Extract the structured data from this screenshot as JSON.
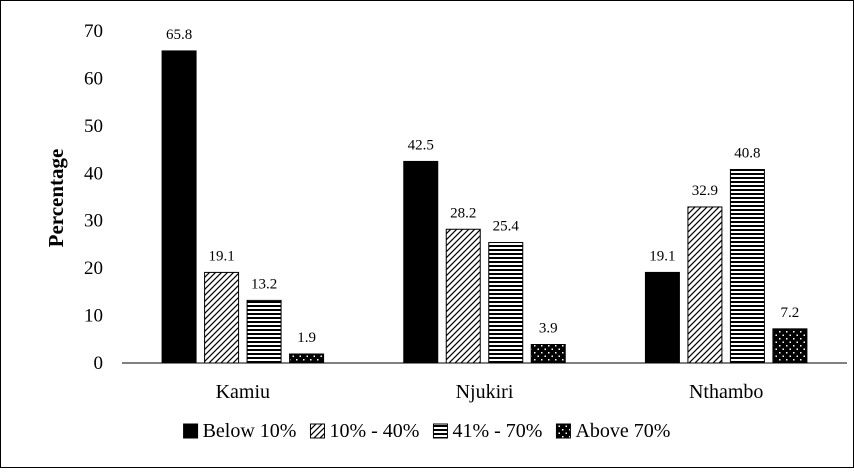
{
  "chart_data": {
    "type": "bar",
    "title": "",
    "xlabel": "",
    "ylabel": "Percentage",
    "ylim": [
      0,
      70
    ],
    "yticks": [
      0,
      10,
      20,
      30,
      40,
      50,
      60,
      70
    ],
    "categories": [
      "Kamiu",
      "Njukiri",
      "Nthambo"
    ],
    "series": [
      {
        "name": "Below 10%",
        "pattern": "solid",
        "values": [
          65.8,
          42.5,
          19.1
        ]
      },
      {
        "name": "10% - 40%",
        "pattern": "diagonal-hatch",
        "values": [
          19.1,
          28.2,
          32.9
        ]
      },
      {
        "name": "41% - 70%",
        "pattern": "horizontal-lines",
        "values": [
          13.2,
          25.4,
          40.8
        ]
      },
      {
        "name": "Above 70%",
        "pattern": "dotted-black",
        "values": [
          1.9,
          3.9,
          7.2
        ]
      }
    ],
    "data_labels": [
      [
        "65.8",
        "42.5",
        "19.1"
      ],
      [
        "19.1",
        "28.2",
        "32.9"
      ],
      [
        "13.2",
        "25.4",
        "40.8"
      ],
      [
        "1.9",
        "3.9",
        "7.2"
      ]
    ],
    "grid": false,
    "legend_position": "bottom",
    "colors": {
      "bar": "#000000",
      "background": "#ffffff"
    }
  }
}
